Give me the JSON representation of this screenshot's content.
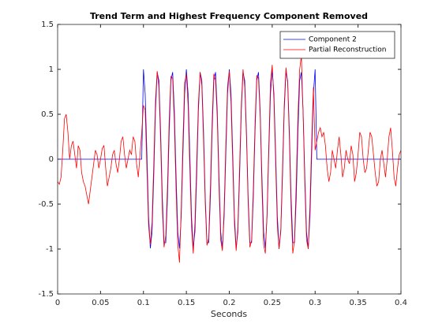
{
  "chart_data": {
    "type": "line",
    "title": "Trend Term and Highest Frequency Component Removed",
    "x_label": "Seconds",
    "xlim": [
      0,
      0.4
    ],
    "xticks": [
      0,
      0.05,
      0.1,
      0.15,
      0.2,
      0.25,
      0.3,
      0.35,
      0.4
    ],
    "ylim": [
      -1.5,
      1.5
    ],
    "yticks": [
      -1.5,
      -1,
      -0.5,
      0,
      0.5,
      1,
      1.5
    ],
    "grid": false,
    "legend": "northeast",
    "x": [
      0,
      0.002,
      0.004,
      0.006,
      0.008,
      0.01,
      0.012,
      0.014,
      0.016,
      0.018,
      0.02,
      0.022,
      0.024,
      0.026,
      0.028,
      0.03,
      0.032,
      0.034,
      0.036,
      0.038,
      0.04,
      0.042,
      0.044,
      0.046,
      0.048,
      0.05,
      0.052,
      0.054,
      0.056,
      0.058,
      0.06,
      0.062,
      0.064,
      0.066,
      0.068,
      0.07,
      0.072,
      0.074,
      0.076,
      0.078,
      0.08,
      0.082,
      0.084,
      0.086,
      0.088,
      0.09,
      0.092,
      0.094,
      0.096,
      0.098,
      0.1,
      0.102,
      0.104,
      0.106,
      0.108,
      0.11,
      0.112,
      0.114,
      0.116,
      0.118,
      0.12,
      0.122,
      0.124,
      0.126,
      0.128,
      0.13,
      0.132,
      0.134,
      0.136,
      0.138,
      0.14,
      0.142,
      0.144,
      0.146,
      0.148,
      0.15,
      0.152,
      0.154,
      0.156,
      0.158,
      0.16,
      0.162,
      0.164,
      0.166,
      0.168,
      0.17,
      0.172,
      0.174,
      0.176,
      0.178,
      0.18,
      0.182,
      0.184,
      0.186,
      0.188,
      0.19,
      0.192,
      0.194,
      0.196,
      0.198,
      0.2,
      0.202,
      0.204,
      0.206,
      0.208,
      0.21,
      0.212,
      0.214,
      0.216,
      0.218,
      0.22,
      0.222,
      0.224,
      0.226,
      0.228,
      0.23,
      0.232,
      0.234,
      0.236,
      0.238,
      0.24,
      0.242,
      0.244,
      0.246,
      0.248,
      0.25,
      0.252,
      0.254,
      0.256,
      0.258,
      0.26,
      0.262,
      0.264,
      0.266,
      0.268,
      0.27,
      0.272,
      0.274,
      0.276,
      0.278,
      0.28,
      0.282,
      0.284,
      0.286,
      0.288,
      0.29,
      0.292,
      0.294,
      0.296,
      0.298,
      0.3,
      0.302,
      0.304,
      0.306,
      0.308,
      0.31,
      0.312,
      0.314,
      0.316,
      0.318,
      0.32,
      0.322,
      0.324,
      0.326,
      0.328,
      0.33,
      0.332,
      0.334,
      0.336,
      0.338,
      0.34,
      0.342,
      0.344,
      0.346,
      0.348,
      0.35,
      0.352,
      0.354,
      0.356,
      0.358,
      0.36,
      0.362,
      0.364,
      0.366,
      0.368,
      0.37,
      0.372,
      0.374,
      0.376,
      0.378,
      0.38,
      0.382,
      0.384,
      0.386,
      0.388,
      0.39,
      0.392,
      0.394,
      0.396,
      0.398,
      0.4
    ],
    "series": [
      {
        "name": "Component 2",
        "color": "#0000ff",
        "values": [
          0,
          0,
          0,
          0,
          0,
          0,
          0,
          0,
          0,
          0,
          0,
          0,
          0,
          0,
          0,
          0,
          0,
          0,
          0,
          0,
          0,
          0,
          0,
          0,
          0,
          0,
          0,
          0,
          0,
          0,
          0,
          0,
          0,
          0,
          0,
          0,
          0,
          0,
          0,
          0,
          0,
          0,
          0,
          0,
          0,
          0,
          0,
          0,
          0,
          0,
          1,
          0.729,
          0.063,
          -0.637,
          -0.992,
          -0.809,
          -0.187,
          0.536,
          0.969,
          0.876,
          0.309,
          -0.426,
          -0.93,
          -0.93,
          -0.426,
          0.309,
          0.876,
          0.969,
          0.536,
          -0.187,
          -0.809,
          -0.992,
          -0.637,
          0.063,
          0.729,
          1,
          0.729,
          0.063,
          -0.637,
          -0.992,
          -0.809,
          -0.187,
          0.536,
          0.969,
          0.876,
          0.309,
          -0.426,
          -0.93,
          -0.93,
          -0.426,
          0.309,
          0.876,
          0.969,
          0.536,
          -0.187,
          -0.809,
          -0.992,
          -0.637,
          0.063,
          0.729,
          1,
          0.729,
          0.063,
          -0.637,
          -0.992,
          -0.809,
          -0.187,
          0.536,
          0.969,
          0.876,
          0.309,
          -0.426,
          -0.93,
          -0.93,
          -0.426,
          0.309,
          0.876,
          0.969,
          0.536,
          -0.187,
          -0.809,
          -0.992,
          -0.637,
          0.063,
          0.729,
          1,
          0.729,
          0.063,
          -0.637,
          -0.992,
          -0.809,
          -0.187,
          0.536,
          0.969,
          0.876,
          0.309,
          -0.426,
          -0.93,
          -0.93,
          -0.426,
          0.309,
          0.876,
          0.969,
          0.536,
          -0.187,
          -0.809,
          -0.992,
          -0.637,
          0.063,
          0.729,
          1,
          0,
          0,
          0,
          0,
          0,
          0,
          0,
          0,
          0,
          0,
          0,
          0,
          0,
          0,
          0,
          0,
          0,
          0,
          0,
          0,
          0,
          0,
          0,
          0,
          0,
          0,
          0,
          0,
          0,
          0,
          0,
          0,
          0,
          0,
          0,
          0,
          0,
          0,
          0,
          0,
          0,
          0,
          0,
          0,
          0,
          0,
          0,
          0,
          0,
          0
        ]
      },
      {
        "name": "Partial Reconstruction",
        "color": "#ff0000",
        "values": [
          -0.25,
          -0.28,
          -0.2,
          0.1,
          0.45,
          0.5,
          0.3,
          0,
          0.15,
          0.2,
          0.05,
          -0.1,
          0.15,
          0.1,
          -0.15,
          -0.25,
          -0.3,
          -0.4,
          -0.5,
          -0.35,
          -0.2,
          -0.05,
          0.1,
          0.05,
          -0.1,
          0,
          0.12,
          0.15,
          -0.1,
          -0.3,
          -0.2,
          -0.1,
          0.05,
          0.1,
          -0.05,
          -0.15,
          0,
          0.2,
          0.25,
          0.05,
          -0.1,
          0,
          0.1,
          0.05,
          0.25,
          0.2,
          -0.05,
          -0.2,
          0.05,
          0.3,
          0.6,
          0.55,
          -0.1,
          -0.75,
          -0.95,
          -0.7,
          -0.05,
          0.65,
          0.98,
          0.8,
          0.2,
          -0.55,
          -0.98,
          -0.85,
          -0.3,
          0.45,
          0.92,
          0.9,
          0.4,
          -0.35,
          -0.95,
          -1.15,
          -0.55,
          0.2,
          0.85,
          0.95,
          0.6,
          -0.1,
          -0.75,
          -1.05,
          -0.7,
          -0.05,
          0.62,
          0.97,
          0.82,
          0.2,
          -0.5,
          -0.96,
          -0.88,
          -0.3,
          0.42,
          0.95,
          0.88,
          0.45,
          -0.3,
          -0.9,
          -1.02,
          -0.55,
          0.18,
          0.82,
          0.98,
          0.62,
          -0.05,
          -0.72,
          -1.02,
          -0.75,
          -0.08,
          0.6,
          1,
          0.8,
          0.25,
          -0.5,
          -0.98,
          -0.9,
          -0.32,
          0.4,
          0.93,
          0.9,
          0.48,
          -0.3,
          -0.95,
          -1.05,
          -0.6,
          0.15,
          0.85,
          1.05,
          0.65,
          -0.05,
          -0.75,
          -1,
          -0.78,
          -0.1,
          0.6,
          1.02,
          0.85,
          0.22,
          -0.55,
          -1.05,
          -0.9,
          -0.25,
          0.48,
          1,
          1.15,
          0.5,
          -0.28,
          -0.9,
          -1,
          -0.5,
          0.2,
          0.8,
          0.1,
          0.2,
          0.3,
          0.35,
          0.25,
          0.3,
          0.15,
          -0.1,
          -0.25,
          -0.15,
          0.1,
          0,
          -0.1,
          0.1,
          0.25,
          0.05,
          -0.2,
          -0.1,
          0.1,
          0,
          -0.05,
          0.15,
          0.05,
          -0.25,
          -0.15,
          0.05,
          0.3,
          0.25,
          0,
          -0.15,
          -0.1,
          0.1,
          0.3,
          0.25,
          0.05,
          -0.15,
          -0.3,
          -0.25,
          0,
          0.1,
          -0.05,
          -0.2,
          0,
          0.25,
          0.35,
          0.1,
          -0.2,
          -0.3,
          -0.1,
          0.05,
          0.1
        ]
      }
    ]
  }
}
